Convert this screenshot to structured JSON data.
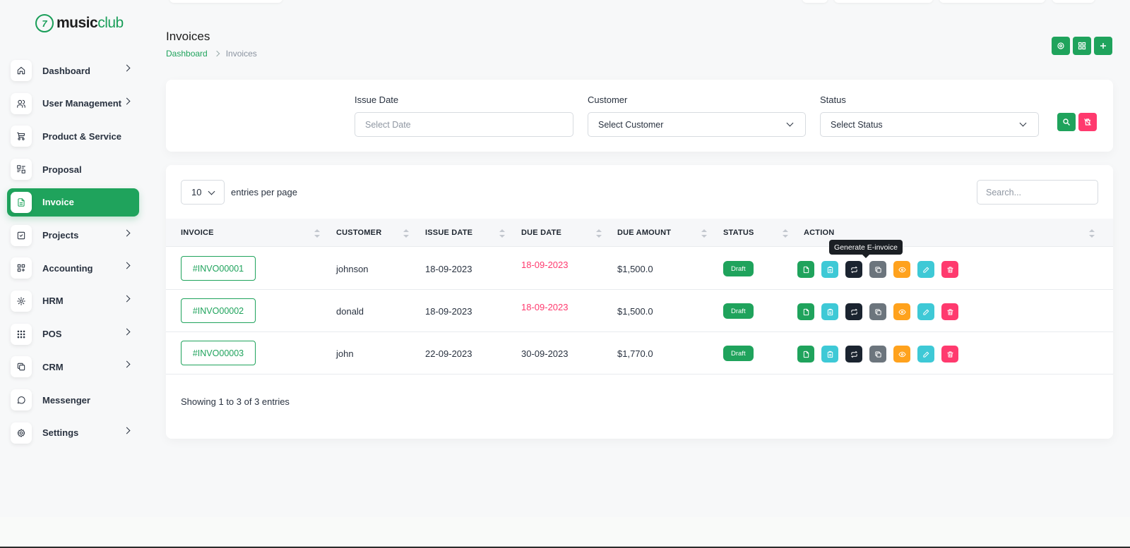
{
  "brand": {
    "mark": "7",
    "name_bold": "music",
    "name_light": "club",
    "color": "#1fa35c"
  },
  "sidebar": {
    "items": [
      {
        "label": "Dashboard",
        "icon": "home-icon",
        "chevron": true
      },
      {
        "label": "User Management",
        "icon": "users-icon",
        "chevron": true
      },
      {
        "label": "Product & Service",
        "icon": "cart-icon",
        "chevron": false
      },
      {
        "label": "Proposal",
        "icon": "proposal-icon",
        "chevron": false
      },
      {
        "label": "Invoice",
        "icon": "file-invoice-icon",
        "chevron": false,
        "active": true
      },
      {
        "label": "Projects",
        "icon": "square-check-icon",
        "chevron": true
      },
      {
        "label": "Accounting",
        "icon": "layout-grid-add-icon",
        "chevron": true
      },
      {
        "label": "HRM",
        "icon": "hrm-icon",
        "chevron": true
      },
      {
        "label": "POS",
        "icon": "grid-dots-icon",
        "chevron": true
      },
      {
        "label": "CRM",
        "icon": "layers-icon",
        "chevron": true
      },
      {
        "label": "Messenger",
        "icon": "message-icon",
        "chevron": false
      },
      {
        "label": "Settings",
        "icon": "settings-icon",
        "chevron": true
      }
    ]
  },
  "header": {
    "title": "Invoices",
    "breadcrumb": {
      "home": "Dashboard",
      "current": "Invoices"
    },
    "buttons": [
      "settings-icon",
      "grid-icon",
      "plus-icon"
    ]
  },
  "filters": {
    "issue_date": {
      "label": "Issue Date",
      "placeholder": "Select Date"
    },
    "customer": {
      "label": "Customer",
      "value": "Select Customer"
    },
    "status": {
      "label": "Status",
      "value": "Select Status"
    },
    "search_button_icon": "search-icon",
    "reset_button_icon": "trash-off-icon"
  },
  "table": {
    "entries_value": "10",
    "entries_label": "entries per page",
    "search_placeholder": "Search...",
    "columns": [
      "INVOICE",
      "CUSTOMER",
      "ISSUE DATE",
      "DUE DATE",
      "DUE AMOUNT",
      "STATUS",
      "ACTION"
    ],
    "rows": [
      {
        "invoice": "#INVO00001",
        "customer": "johnson",
        "issue_date": "18-09-2023",
        "due_date": "18-09-2023",
        "overdue": true,
        "due_amount": "$1,500.0",
        "status": "Draft"
      },
      {
        "invoice": "#INVO00002",
        "customer": "donald",
        "issue_date": "18-09-2023",
        "due_date": "18-09-2023",
        "overdue": true,
        "due_amount": "$1,500.0",
        "status": "Draft"
      },
      {
        "invoice": "#INVO00003",
        "customer": "john",
        "issue_date": "22-09-2023",
        "due_date": "30-09-2023",
        "overdue": false,
        "due_amount": "$1,770.0",
        "status": "Draft"
      }
    ],
    "actions": [
      {
        "name": "file-icon",
        "color": "#1fa35c"
      },
      {
        "name": "clipboard-icon",
        "color": "#3ec9d6"
      },
      {
        "name": "repeat-icon",
        "color": "#1b2430"
      },
      {
        "name": "copy-icon",
        "color": "#6c757d"
      },
      {
        "name": "eye-icon",
        "color": "#ffa21d"
      },
      {
        "name": "pencil-icon",
        "color": "#3ec9d6"
      },
      {
        "name": "trash-icon",
        "color": "#ff3a6e"
      }
    ],
    "tooltip": "Generate E-invoice",
    "footer": "Showing 1 to 3 of 3 entries"
  },
  "colors": {
    "primary": "#1fa35c",
    "danger": "#ff3a6e",
    "info": "#3ec9d6",
    "warning": "#ffa21d",
    "dark": "#1b2430",
    "secondary": "#6c757d"
  }
}
